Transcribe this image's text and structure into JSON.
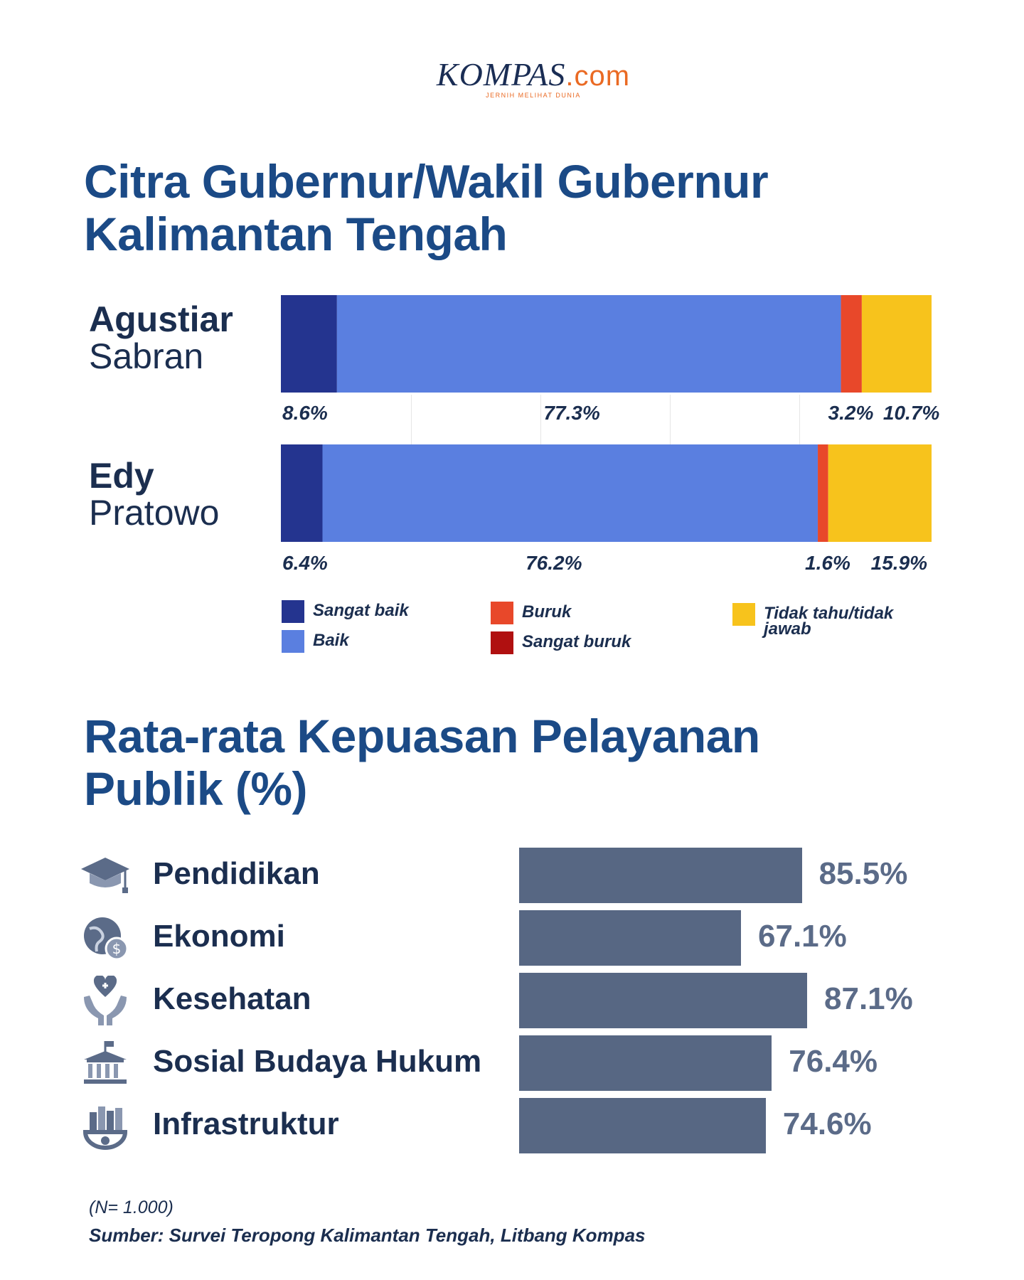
{
  "logo": {
    "main": "KOMPAS",
    "suffix": ".com",
    "tagline": "JERNIH MELIHAT DUNIA"
  },
  "section1": {
    "title_line1": "Citra Gubernur/Wakil Gubernur",
    "title_line2": "Kalimantan Tengah"
  },
  "section2": {
    "title_line1": "Rata-rata Kepuasan Pelayanan",
    "title_line2": "Publik (%)"
  },
  "chart_data": [
    {
      "type": "bar",
      "orientation": "horizontal-stacked",
      "categories": [
        "Agustiar Sabran",
        "Edy Pratowo"
      ],
      "category_parts": [
        [
          "Agustiar",
          "Sabran"
        ],
        [
          "Edy",
          "Pratowo"
        ]
      ],
      "series": [
        {
          "name": "Sangat baik",
          "color": "#24348f",
          "values": [
            8.6,
            6.4
          ]
        },
        {
          "name": "Baik",
          "color": "#5a7fe0",
          "values": [
            77.3,
            76.2
          ]
        },
        {
          "name": "Buruk",
          "color": "#e8482a",
          "values": [
            3.2,
            1.6
          ]
        },
        {
          "name": "Sangat buruk",
          "color": "#b01010",
          "values": [
            0,
            0
          ]
        },
        {
          "name": "Tidak tahu/tidak jawab",
          "color": "#f7c31c",
          "values": [
            10.7,
            15.9
          ]
        }
      ],
      "data_labels": [
        [
          "8.6%",
          "77.3%",
          "3.2%",
          "10.7%"
        ],
        [
          "6.4%",
          "76.2%",
          "1.6%",
          "15.9%"
        ]
      ],
      "xlim": [
        0,
        100
      ],
      "legend": "bottom"
    },
    {
      "type": "bar",
      "orientation": "horizontal",
      "categories": [
        "Pendidikan",
        "Ekonomi",
        "Kesehatan",
        "Sosial Budaya Hukum",
        "Infrastruktur"
      ],
      "icons": [
        "graduation-cap-icon",
        "globe-dollar-icon",
        "heart-hands-icon",
        "government-building-icon",
        "city-gear-icon"
      ],
      "values": [
        85.5,
        67.1,
        87.1,
        76.4,
        74.6
      ],
      "value_labels": [
        "85.5%",
        "67.1%",
        "87.1%",
        "76.4%",
        "74.6%"
      ],
      "bar_color": "#576783",
      "label_color": "#5b6b88"
    }
  ],
  "footer": {
    "note": "(N= 1.000)",
    "source": "Sumber: Survei Teropong Kalimantan Tengah, Litbang Kompas"
  }
}
